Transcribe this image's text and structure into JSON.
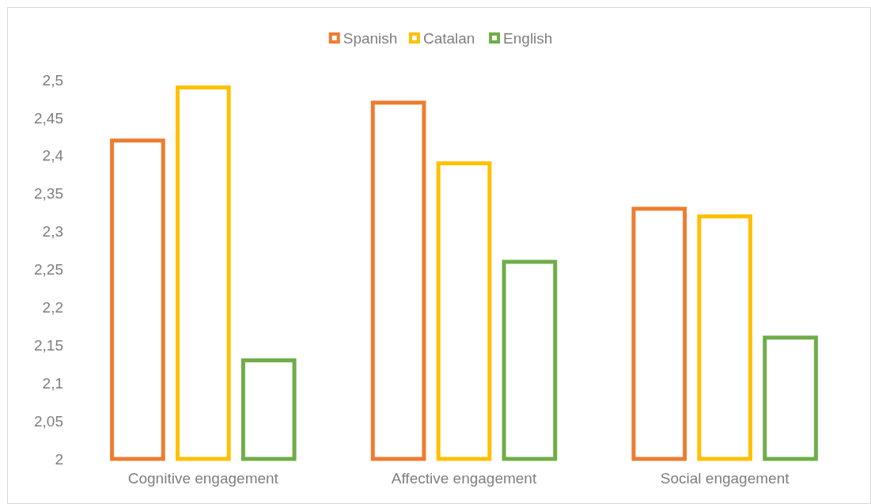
{
  "chart_data": {
    "type": "bar",
    "categories": [
      "Cognitive engagement",
      "Affective engagement",
      "Social engagement"
    ],
    "series": [
      {
        "name": "Spanish",
        "color": "#ed7d31",
        "values": [
          2.42,
          2.47,
          2.33
        ]
      },
      {
        "name": "Catalan",
        "color": "#ffc000",
        "values": [
          2.49,
          2.39,
          2.32
        ]
      },
      {
        "name": "English",
        "color": "#70ad47",
        "values": [
          2.13,
          2.26,
          2.16
        ]
      }
    ],
    "ylim": [
      2,
      2.5
    ],
    "yticks": [
      {
        "value": 2,
        "label": "2"
      },
      {
        "value": 2.05,
        "label": "2,05"
      },
      {
        "value": 2.1,
        "label": "2,1"
      },
      {
        "value": 2.15,
        "label": "2,15"
      },
      {
        "value": 2.2,
        "label": "2,2"
      },
      {
        "value": 2.25,
        "label": "2,25"
      },
      {
        "value": 2.3,
        "label": "2,3"
      },
      {
        "value": 2.35,
        "label": "2,35"
      },
      {
        "value": 2.4,
        "label": "2,4"
      },
      {
        "value": 2.45,
        "label": "2,45"
      },
      {
        "value": 2.5,
        "label": "2,5"
      }
    ],
    "grid": false,
    "legend": "top"
  }
}
